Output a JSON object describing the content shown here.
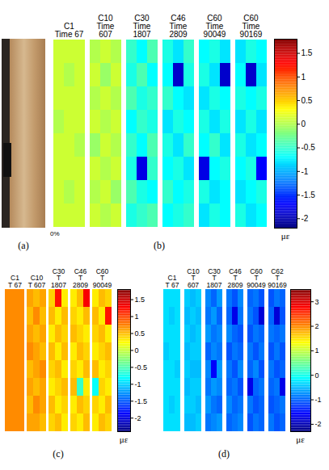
{
  "chart_data": [
    {
      "type": "photo",
      "label": "(a)"
    },
    {
      "type": "heatmap",
      "label": "(b)",
      "note": "0%",
      "color_label": "με",
      "color_range": [
        -2.2,
        1.8
      ],
      "color_ticks": [
        1.5,
        1,
        0.5,
        0,
        -0.5,
        -1,
        -1.5,
        -2
      ],
      "strips": [
        {
          "title": "C1 Time 67",
          "cells": [
            [
              0.1,
              0.1,
              0.1
            ],
            [
              0.1,
              0.0,
              0.1
            ],
            [
              0.1,
              0.1,
              0.1
            ],
            [
              0.0,
              0.1,
              0.1
            ],
            [
              0.1,
              0.1,
              0.0
            ],
            [
              0.1,
              0.1,
              0.1
            ],
            [
              0.1,
              0.0,
              0.1
            ],
            [
              0.1,
              0.1,
              0.1
            ]
          ]
        },
        {
          "title": "C10 Time 607",
          "cells": [
            [
              0.0,
              0.1,
              0.0
            ],
            [
              0.1,
              -0.1,
              0.1
            ],
            [
              0.0,
              0.1,
              0.0
            ],
            [
              0.1,
              0.0,
              0.1
            ],
            [
              -0.1,
              0.1,
              0.0
            ],
            [
              0.1,
              0.0,
              0.1
            ],
            [
              0.0,
              0.1,
              -0.1
            ],
            [
              0.1,
              0.0,
              0.1
            ]
          ]
        },
        {
          "title": "C30 Time 1807",
          "cells": [
            [
              -0.5,
              -0.7,
              -0.4
            ],
            [
              -0.6,
              -0.4,
              -0.7
            ],
            [
              -0.4,
              -0.6,
              -0.5
            ],
            [
              -0.7,
              -0.5,
              -0.6
            ],
            [
              -0.5,
              -0.7,
              -0.4
            ],
            [
              -0.6,
              -1.8,
              -0.5
            ],
            [
              -0.4,
              -0.6,
              -0.7
            ],
            [
              -0.6,
              -0.5,
              -0.4
            ]
          ]
        },
        {
          "title": "C46 Time 2809",
          "cells": [
            [
              -0.6,
              -0.8,
              -0.5
            ],
            [
              -0.7,
              -1.9,
              -0.6
            ],
            [
              -0.5,
              -0.7,
              -0.8
            ],
            [
              -0.8,
              -0.6,
              -0.7
            ],
            [
              -0.6,
              -0.8,
              -0.5
            ],
            [
              -0.7,
              -0.6,
              -0.8
            ],
            [
              -0.5,
              -0.7,
              -0.6
            ],
            [
              -0.7,
              -0.6,
              -0.5
            ]
          ]
        },
        {
          "title": "C60 Time 90049",
          "cells": [
            [
              -0.7,
              -0.6,
              -0.8
            ],
            [
              -0.6,
              -0.8,
              -1.9
            ],
            [
              -0.8,
              -0.6,
              -0.7
            ],
            [
              -0.6,
              -0.8,
              -0.6
            ],
            [
              -0.7,
              -0.5,
              -0.8
            ],
            [
              -1.8,
              -0.7,
              -0.6
            ],
            [
              -0.6,
              -0.8,
              -0.7
            ],
            [
              -0.8,
              -0.6,
              -0.7
            ]
          ]
        },
        {
          "title": "C60 Time 90169",
          "cells": [
            [
              -0.8,
              -0.6,
              -0.7
            ],
            [
              -0.7,
              -1.9,
              -0.8
            ],
            [
              -0.6,
              -0.7,
              -0.6
            ],
            [
              -0.8,
              -0.6,
              -0.8
            ],
            [
              -0.6,
              -0.8,
              -0.7
            ],
            [
              -0.7,
              -0.6,
              -1.7
            ],
            [
              -0.8,
              -0.7,
              -0.6
            ],
            [
              -0.6,
              -0.8,
              -0.7
            ]
          ]
        }
      ]
    },
    {
      "type": "heatmap",
      "label": "(c)",
      "color_label": "με",
      "color_range": [
        -2.4,
        1.8
      ],
      "color_ticks": [
        1.5,
        1,
        0.5,
        0,
        -0.5,
        -1,
        -1.5,
        -2
      ],
      "strips": [
        {
          "title": "C1 T 67",
          "cells": [
            [
              0.7,
              0.7,
              0.7
            ],
            [
              0.7,
              0.7,
              0.7
            ],
            [
              0.7,
              0.7,
              0.7
            ],
            [
              0.7,
              0.7,
              0.7
            ],
            [
              0.7,
              0.7,
              0.7
            ],
            [
              0.7,
              0.7,
              0.7
            ],
            [
              0.7,
              0.7,
              0.7
            ],
            [
              0.7,
              0.7,
              0.7
            ]
          ]
        },
        {
          "title": "C10 T 607",
          "cells": [
            [
              0.6,
              0.5,
              0.6
            ],
            [
              0.5,
              0.7,
              0.5
            ],
            [
              0.6,
              0.5,
              0.6
            ],
            [
              0.7,
              0.6,
              0.5
            ],
            [
              0.5,
              0.6,
              0.7
            ],
            [
              0.6,
              0.5,
              0.6
            ],
            [
              0.5,
              0.7,
              0.6
            ],
            [
              0.6,
              0.6,
              0.5
            ]
          ]
        },
        {
          "title": "C30 T 1807",
          "cells": [
            [
              0.4,
              1.2,
              0.3
            ],
            [
              0.5,
              0.3,
              0.5
            ],
            [
              0.3,
              0.5,
              0.4
            ],
            [
              0.5,
              0.3,
              0.5
            ],
            [
              0.4,
              0.5,
              0.3
            ],
            [
              0.3,
              0.4,
              0.5
            ],
            [
              0.5,
              0.3,
              0.4
            ],
            [
              0.4,
              0.5,
              0.3
            ]
          ]
        },
        {
          "title": "C46 T 2809",
          "cells": [
            [
              0.3,
              0.5,
              1.3
            ],
            [
              0.4,
              0.3,
              0.5
            ],
            [
              0.5,
              0.4,
              0.3
            ],
            [
              0.3,
              0.5,
              0.4
            ],
            [
              0.4,
              0.3,
              0.5
            ],
            [
              0.5,
              -0.6,
              0.3
            ],
            [
              0.3,
              0.5,
              0.4
            ],
            [
              0.4,
              0.3,
              0.5
            ]
          ]
        },
        {
          "title": "C60 T 90049",
          "cells": [
            [
              0.3,
              0.5,
              0.4
            ],
            [
              0.5,
              0.3,
              1.2
            ],
            [
              0.4,
              0.5,
              0.3
            ],
            [
              0.3,
              0.4,
              0.5
            ],
            [
              0.5,
              0.3,
              0.4
            ],
            [
              -0.8,
              0.4,
              0.3
            ],
            [
              0.4,
              0.3,
              0.5
            ],
            [
              0.3,
              0.5,
              0.4
            ]
          ]
        }
      ]
    },
    {
      "type": "heatmap",
      "label": "(d)",
      "color_label": "με",
      "color_range": [
        -2.3,
        3.5
      ],
      "color_ticks": [
        3,
        2,
        1,
        0,
        -1,
        -2
      ],
      "strips": [
        {
          "title": "C1 T 67",
          "cells": [
            [
              -0.3,
              -0.3,
              -0.3
            ],
            [
              -0.3,
              -0.4,
              -0.3
            ],
            [
              -0.3,
              -0.3,
              -0.3
            ],
            [
              -0.4,
              -0.3,
              -0.3
            ],
            [
              -0.3,
              -0.3,
              -0.4
            ],
            [
              -0.3,
              -0.3,
              -0.3
            ],
            [
              -0.3,
              -0.4,
              -0.3
            ],
            [
              -0.3,
              -0.3,
              -0.3
            ]
          ]
        },
        {
          "title": "C10 T 607",
          "cells": [
            [
              -0.4,
              -0.5,
              -0.4
            ],
            [
              -0.5,
              -0.4,
              -0.5
            ],
            [
              -0.4,
              -0.5,
              -0.4
            ],
            [
              -0.5,
              -0.4,
              -0.4
            ],
            [
              -0.4,
              -0.5,
              -0.5
            ],
            [
              -0.5,
              -0.4,
              -0.4
            ],
            [
              -0.4,
              -0.4,
              -0.5
            ],
            [
              -0.5,
              -0.5,
              -0.4
            ]
          ]
        },
        {
          "title": "C30 T 1807",
          "cells": [
            [
              -0.8,
              -1.0,
              -0.7
            ],
            [
              -0.9,
              -0.7,
              -1.0
            ],
            [
              -0.7,
              -0.9,
              -0.8
            ],
            [
              -1.0,
              -0.8,
              -0.9
            ],
            [
              -0.8,
              -1.6,
              -0.7
            ],
            [
              -0.9,
              -0.7,
              -0.8
            ],
            [
              -0.7,
              -0.9,
              -1.0
            ],
            [
              -0.9,
              -0.8,
              -0.7
            ]
          ]
        },
        {
          "title": "C46 T 2809",
          "cells": [
            [
              -0.9,
              -1.1,
              -0.8
            ],
            [
              -1.0,
              -1.7,
              -0.9
            ],
            [
              -0.8,
              -1.0,
              -1.1
            ],
            [
              -1.1,
              -0.9,
              -1.0
            ],
            [
              -0.9,
              -1.1,
              -0.8
            ],
            [
              -1.0,
              -0.9,
              -1.1
            ],
            [
              -0.8,
              -1.0,
              -0.9
            ],
            [
              -1.0,
              -0.9,
              -0.8
            ]
          ]
        },
        {
          "title": "C60 T 90049",
          "cells": [
            [
              -1.0,
              -0.9,
              -1.1
            ],
            [
              -0.9,
              -1.1,
              -1.8
            ],
            [
              -1.1,
              -0.9,
              -1.0
            ],
            [
              -0.9,
              -1.1,
              -0.9
            ],
            [
              -1.0,
              -0.8,
              -1.1
            ],
            [
              -1.7,
              -1.0,
              -0.9
            ],
            [
              -0.9,
              -1.1,
              -1.0
            ],
            [
              -1.1,
              -0.9,
              -1.0
            ]
          ]
        },
        {
          "title": "C62 T 90169",
          "cells": [
            [
              -1.1,
              -0.9,
              -1.0
            ],
            [
              -1.0,
              -1.8,
              -1.1
            ],
            [
              -0.9,
              -1.0,
              -0.9
            ],
            [
              -1.1,
              -0.9,
              -1.1
            ],
            [
              -0.9,
              -1.1,
              -1.0
            ],
            [
              -1.0,
              -0.9,
              -1.7
            ],
            [
              -1.1,
              -1.0,
              -0.9
            ],
            [
              -0.9,
              -1.1,
              -1.0
            ]
          ]
        }
      ]
    }
  ]
}
